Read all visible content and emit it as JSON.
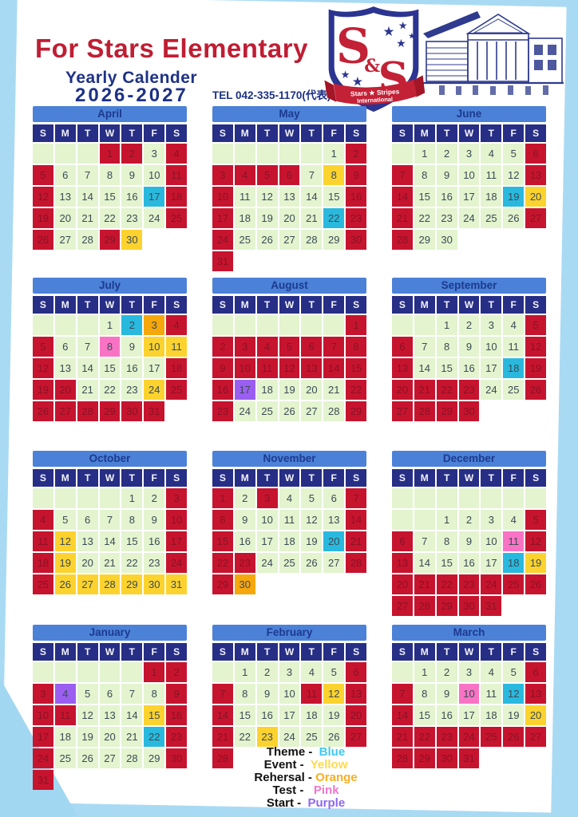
{
  "header": {
    "title": "For Stars Elementary",
    "subtitle": "Yearly Calender",
    "years": "2026-2027",
    "tel": "TEL 042-335-1170(代表)",
    "logo": {
      "monogram_top": "S",
      "monogram_amp": "&",
      "monogram_bottom": "S",
      "ribbon_line1": "Stars ★ Stripes",
      "ribbon_line2": "International"
    }
  },
  "day_headers": [
    "S",
    "M",
    "T",
    "W",
    "T",
    "F",
    "S"
  ],
  "palette": {
    "regular": "#e3f4cf",
    "holiday": "#c6142f",
    "theme": "#29b9de",
    "event": "#fcd32e",
    "rehersal": "#f6a70c",
    "test": "#f973c4",
    "start": "#9a5ff0",
    "day_text": "#3b4a54",
    "holiday_text": "#8c1124",
    "month_bar": "#4c81d8",
    "day_header_bg": "#272e85",
    "title_red": "#bf1e33",
    "navy": "#1d3186"
  },
  "months": [
    {
      "name": "April",
      "weeks": [
        [
          ".",
          ".",
          ".",
          "1r",
          "2r",
          "3g",
          "4r"
        ],
        [
          "5r",
          "6g",
          "7g",
          "8g",
          "9g",
          "10g",
          "11r"
        ],
        [
          "12r",
          "13g",
          "14g",
          "15g",
          "16g",
          "17b",
          "18r"
        ],
        [
          "19r",
          "20g",
          "21g",
          "22g",
          "23g",
          "24g",
          "25r"
        ],
        [
          "26r",
          "27g",
          "28g",
          "29r",
          "30y",
          "",
          ""
        ]
      ]
    },
    {
      "name": "May",
      "weeks": [
        [
          ".",
          ".",
          ".",
          ".",
          ".",
          "1g",
          "2r"
        ],
        [
          "3r",
          "4r",
          "5r",
          "6r",
          "7g",
          "8y",
          "9r"
        ],
        [
          "10r",
          "11g",
          "12g",
          "13g",
          "14g",
          "15g",
          "16r"
        ],
        [
          "17r",
          "18g",
          "19g",
          "20g",
          "21g",
          "22b",
          "23r"
        ],
        [
          "24r",
          "25g",
          "26g",
          "27g",
          "28g",
          "29g",
          "30r"
        ],
        [
          "31r",
          "",
          "",
          "",
          "",
          "",
          ""
        ]
      ]
    },
    {
      "name": "June",
      "weeks": [
        [
          ".",
          "1g",
          "2g",
          "3g",
          "4g",
          "5g",
          "6r"
        ],
        [
          "7r",
          "8g",
          "9g",
          "10g",
          "11g",
          "12g",
          "13r"
        ],
        [
          "14r",
          "15g",
          "16g",
          "17g",
          "18g",
          "19b",
          "20y"
        ],
        [
          "21r",
          "22g",
          "23g",
          "24g",
          "25g",
          "26g",
          "27r"
        ],
        [
          "28r",
          "29g",
          "30g",
          "",
          "",
          "",
          ""
        ]
      ]
    },
    {
      "name": "July",
      "weeks": [
        [
          ".",
          ".",
          ".",
          "1g",
          "2b",
          "3o",
          "4r"
        ],
        [
          "5r",
          "6g",
          "7g",
          "8p",
          "9g",
          "10y",
          "11y"
        ],
        [
          "12r",
          "13g",
          "14g",
          "15g",
          "16g",
          "17g",
          "18r"
        ],
        [
          "19r",
          "20r",
          "21g",
          "22g",
          "23g",
          "24y",
          "25r"
        ],
        [
          "26r",
          "27r",
          "28r",
          "29r",
          "30r",
          "31r",
          ""
        ]
      ]
    },
    {
      "name": "August",
      "weeks": [
        [
          ".",
          ".",
          ".",
          ".",
          ".",
          ".",
          "1r"
        ],
        [
          "2r",
          "3r",
          "4r",
          "5r",
          "6r",
          "7r",
          "8r"
        ],
        [
          "9r",
          "10r",
          "11r",
          "12r",
          "13r",
          "14r",
          "15r"
        ],
        [
          "16r",
          "17v",
          "18g",
          "19g",
          "20g",
          "21g",
          "22r"
        ],
        [
          "23r",
          "24g",
          "25g",
          "26g",
          "27g",
          "28g",
          "29r"
        ]
      ]
    },
    {
      "name": "September",
      "weeks": [
        [
          ".",
          ".",
          "1g",
          "2g",
          "3g",
          "4g",
          "5r"
        ],
        [
          "6r",
          "7g",
          "8g",
          "9g",
          "10g",
          "11g",
          "12r"
        ],
        [
          "13r",
          "14g",
          "15g",
          "16g",
          "17g",
          "18b",
          "19r"
        ],
        [
          "20r",
          "21r",
          "22r",
          "23r",
          "24g",
          "25g",
          "26r"
        ],
        [
          "27r",
          "28r",
          "29r",
          "30r",
          "",
          "",
          ""
        ]
      ]
    },
    {
      "name": "October",
      "weeks": [
        [
          ".",
          ".",
          ".",
          ".",
          "1g",
          "2g",
          "3r"
        ],
        [
          "4r",
          "5g",
          "6g",
          "7g",
          "8g",
          "9g",
          "10r"
        ],
        [
          "11r",
          "12y",
          "13g",
          "14g",
          "15g",
          "16g",
          "17r"
        ],
        [
          "18r",
          "19y",
          "20g",
          "21g",
          "22g",
          "23g",
          "24r"
        ],
        [
          "25r",
          "26y",
          "27y",
          "28y",
          "29y",
          "30y",
          "31y"
        ]
      ]
    },
    {
      "name": "November",
      "weeks": [
        [
          "1r",
          "2g",
          "3r",
          "4g",
          "5g",
          "6g",
          "7r"
        ],
        [
          "8r",
          "9g",
          "10g",
          "11g",
          "12g",
          "13g",
          "14r"
        ],
        [
          "15r",
          "16g",
          "17g",
          "18g",
          "19g",
          "20b",
          "21r"
        ],
        [
          "22r",
          "23r",
          "24g",
          "25g",
          "26g",
          "27g",
          "28r"
        ],
        [
          "29r",
          "30o",
          "",
          "",
          "",
          "",
          ""
        ]
      ]
    },
    {
      "name": "December",
      "weeks": [
        [
          ".",
          ".",
          ".",
          ".",
          ".",
          ".",
          "."
        ],
        [
          ".",
          ".",
          "1g",
          "2g",
          "3g",
          "4g",
          "5r"
        ],
        [
          "6r",
          "7g",
          "8g",
          "9g",
          "10g",
          "11p",
          "12r"
        ],
        [
          "13r",
          "14g",
          "15g",
          "16g",
          "17g",
          "18b",
          "19y"
        ],
        [
          "20r",
          "21r",
          "22r",
          "23r",
          "24r",
          "25r",
          "26r"
        ],
        [
          "27r",
          "28r",
          "29r",
          "30r",
          "31r",
          "",
          ""
        ]
      ]
    },
    {
      "name": "January",
      "weeks": [
        [
          ".",
          ".",
          ".",
          ".",
          ".",
          "1r",
          "2r"
        ],
        [
          "3r",
          "4v",
          "5g",
          "6g",
          "7g",
          "8g",
          "9r"
        ],
        [
          "10r",
          "11r",
          "12g",
          "13g",
          "14g",
          "15y",
          "16r"
        ],
        [
          "17r",
          "18g",
          "19g",
          "20g",
          "21g",
          "22b",
          "23r"
        ],
        [
          "24r",
          "25g",
          "26g",
          "27g",
          "28g",
          "29g",
          "30r"
        ],
        [
          "31r",
          "",
          "",
          "",
          "",
          "",
          ""
        ]
      ]
    },
    {
      "name": "February",
      "weeks": [
        [
          ".",
          "1g",
          "2g",
          "3g",
          "4g",
          "5g",
          "6r"
        ],
        [
          "7r",
          "8g",
          "9g",
          "10g",
          "11r",
          "12y",
          "13r"
        ],
        [
          "14r",
          "15g",
          "16g",
          "17g",
          "18g",
          "19g",
          "20r"
        ],
        [
          "21r",
          "22g",
          "23y",
          "24g",
          "25g",
          "26g",
          "27r"
        ],
        [
          "28r",
          "",
          "",
          "",
          "",
          "",
          ""
        ]
      ]
    },
    {
      "name": "March",
      "weeks": [
        [
          ".",
          "1g",
          "2g",
          "3g",
          "4g",
          "5g",
          "6r"
        ],
        [
          "7r",
          "8g",
          "9g",
          "10p",
          "11g",
          "12b",
          "13r"
        ],
        [
          "14r",
          "15g",
          "16g",
          "17g",
          "18g",
          "19g",
          "20y"
        ],
        [
          "21r",
          "22r",
          "23r",
          "24r",
          "25r",
          "26r",
          "27r"
        ],
        [
          "28r",
          "29r",
          "30r",
          "31r",
          "",
          "",
          ""
        ]
      ]
    }
  ],
  "legend": {
    "items": [
      {
        "label": "Theme - ",
        "value": "Blue",
        "color": "#3fc9f2"
      },
      {
        "label": "Event - ",
        "value": "Yellow",
        "color": "#ffd94e"
      },
      {
        "label": "Rehersal -",
        "value": "Orange",
        "color": "#f9ae1f"
      },
      {
        "label": "Test -  ",
        "value": "Pink",
        "color": "#f177cb"
      },
      {
        "label": "Start - ",
        "value": "Purple",
        "color": "#8e66f2"
      }
    ]
  }
}
